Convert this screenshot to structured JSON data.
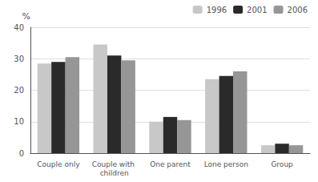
{
  "chart_data": {
    "type": "bar",
    "categories": [
      "Couple only",
      "Couple with children",
      "One parent",
      "Lone person",
      "Group"
    ],
    "series": [
      {
        "name": "1996",
        "color": "#c8c8c8",
        "values": [
          28.5,
          34.5,
          10.0,
          23.5,
          2.5
        ]
      },
      {
        "name": "2001",
        "color": "#2a2a2a",
        "values": [
          29.0,
          31.0,
          11.5,
          24.5,
          3.0
        ]
      },
      {
        "name": "2006",
        "color": "#969696",
        "values": [
          30.5,
          29.5,
          10.5,
          26.0,
          2.5
        ]
      }
    ],
    "ylabel": "%",
    "ylim": [
      0,
      40
    ],
    "yticks": [
      0,
      10,
      20,
      30,
      40
    ],
    "grid": true,
    "legend": "upper right"
  }
}
